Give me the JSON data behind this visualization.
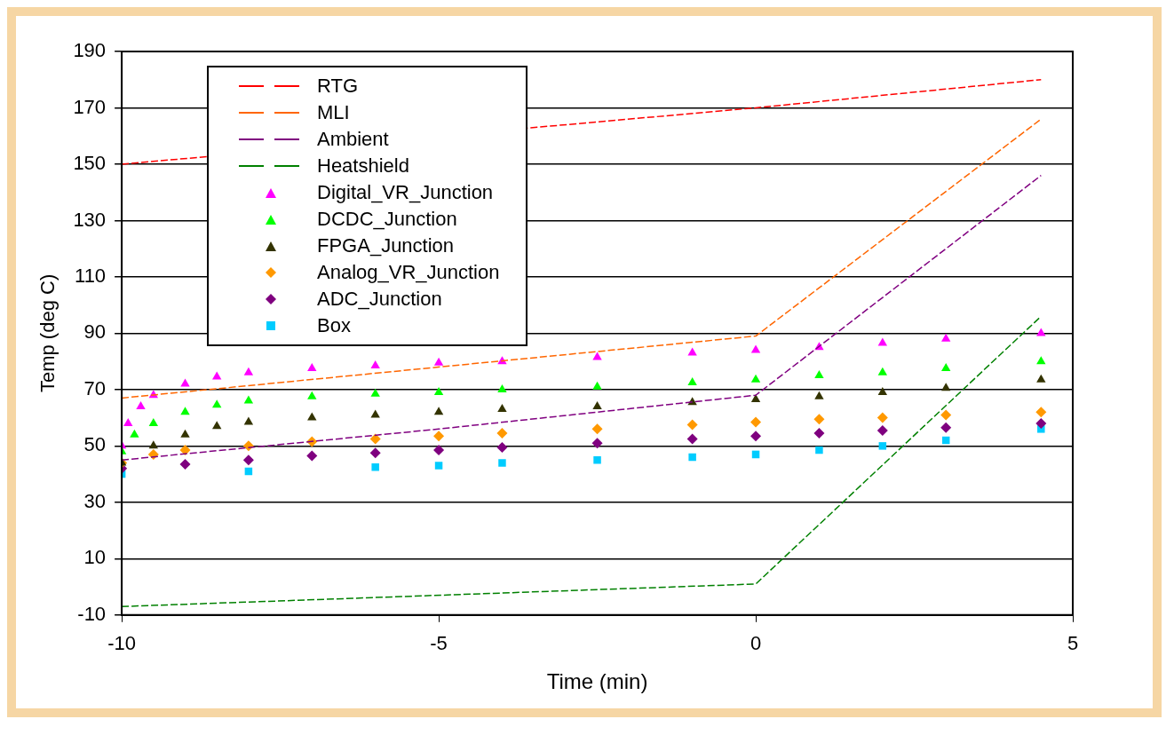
{
  "chart_data": {
    "type": "scatter",
    "xlabel": "Time (min)",
    "ylabel": "Temp (deg C)",
    "xlim": [
      -10,
      5
    ],
    "xticks": [
      -10,
      -5,
      0,
      5
    ],
    "ylim": [
      -10,
      190
    ],
    "yticks": [
      -10,
      10,
      30,
      50,
      70,
      90,
      110,
      130,
      150,
      170,
      190
    ],
    "grid": "y",
    "legend": "top left",
    "series": [
      {
        "name": "RTG",
        "type": "line",
        "line_style": "dashed",
        "marker": "none",
        "color": "#ff0000",
        "x": [
          -10,
          0,
          4.5
        ],
        "values": [
          150,
          170,
          180
        ]
      },
      {
        "name": "MLI",
        "type": "line",
        "line_style": "dashed",
        "marker": "none",
        "color": "#ff6600",
        "x": [
          -10,
          0,
          4.5
        ],
        "values": [
          67,
          89,
          166
        ]
      },
      {
        "name": "Ambient",
        "type": "line",
        "line_style": "dashed",
        "marker": "none",
        "color": "#800080",
        "x": [
          -10,
          -5,
          0,
          4.5
        ],
        "values": [
          45,
          56,
          68,
          146
        ]
      },
      {
        "name": "Heatshield",
        "type": "line",
        "line_style": "dashed",
        "marker": "none",
        "color": "#008000",
        "x": [
          -10,
          0,
          4.5
        ],
        "values": [
          -7,
          1,
          96
        ]
      },
      {
        "name": "Digital_VR_Junction",
        "marker": "triangle",
        "color": "#ff00ff",
        "x": [
          -10,
          -9.9,
          -9.7,
          -9.5,
          -9,
          -8.5,
          -8,
          -7,
          -6,
          -5,
          -4,
          -2.5,
          -1,
          0,
          1,
          2,
          3,
          4.5
        ],
        "values": [
          50,
          58,
          64,
          68,
          72,
          74.5,
          76,
          77.5,
          78.5,
          79.5,
          80,
          81.5,
          83,
          84,
          85,
          86.5,
          88,
          90
        ]
      },
      {
        "name": "DCDC_Junction",
        "marker": "triangle",
        "color": "#00ff00",
        "x": [
          -10,
          -9.8,
          -9.5,
          -9,
          -8.5,
          -8,
          -7,
          -6,
          -5,
          -4,
          -2.5,
          -1,
          0,
          1,
          2,
          3,
          4.5
        ],
        "values": [
          48,
          54,
          58,
          62,
          64.5,
          66,
          67.5,
          68.5,
          69,
          70,
          71,
          72.5,
          73.5,
          75,
          76,
          77.5,
          80
        ]
      },
      {
        "name": "FPGA_Junction",
        "marker": "triangle",
        "color": "#333300",
        "x": [
          -10,
          -9.5,
          -9,
          -8.5,
          -8,
          -7,
          -6,
          -5,
          -4,
          -2.5,
          -1,
          0,
          1,
          2,
          3,
          4.5
        ],
        "values": [
          44,
          50,
          54,
          57,
          58.5,
          60,
          61,
          62,
          63,
          64,
          65.5,
          66.5,
          67.5,
          69,
          70.5,
          73.5
        ]
      },
      {
        "name": "Analog_VR_Junction",
        "marker": "diamond",
        "color": "#ff9900",
        "x": [
          -10,
          -9.5,
          -9,
          -8,
          -7,
          -6,
          -5,
          -4,
          -2.5,
          -1,
          0,
          1,
          2,
          3,
          4.5
        ],
        "values": [
          44,
          47,
          48.5,
          50,
          51.5,
          52.5,
          53.5,
          54.5,
          56,
          57.5,
          58.5,
          59.5,
          60,
          61,
          62
        ]
      },
      {
        "name": "ADC_Junction",
        "marker": "diamond",
        "color": "#7f007f",
        "x": [
          -10,
          -9,
          -8,
          -7,
          -6,
          -5,
          -4,
          -2.5,
          -1,
          0,
          1,
          2,
          3,
          4.5
        ],
        "values": [
          42,
          43.5,
          45,
          46.5,
          47.5,
          48.5,
          49.5,
          51,
          52.5,
          53.5,
          54.5,
          55.5,
          56.5,
          58
        ]
      },
      {
        "name": "Box",
        "marker": "square",
        "color": "#00ccff",
        "x": [
          -10,
          -8,
          -6,
          -5,
          -4,
          -2.5,
          -1,
          0,
          1,
          2,
          3,
          4.5
        ],
        "values": [
          40,
          41,
          42.5,
          43,
          44,
          45,
          46,
          47,
          48.5,
          50,
          52,
          56
        ]
      }
    ]
  }
}
